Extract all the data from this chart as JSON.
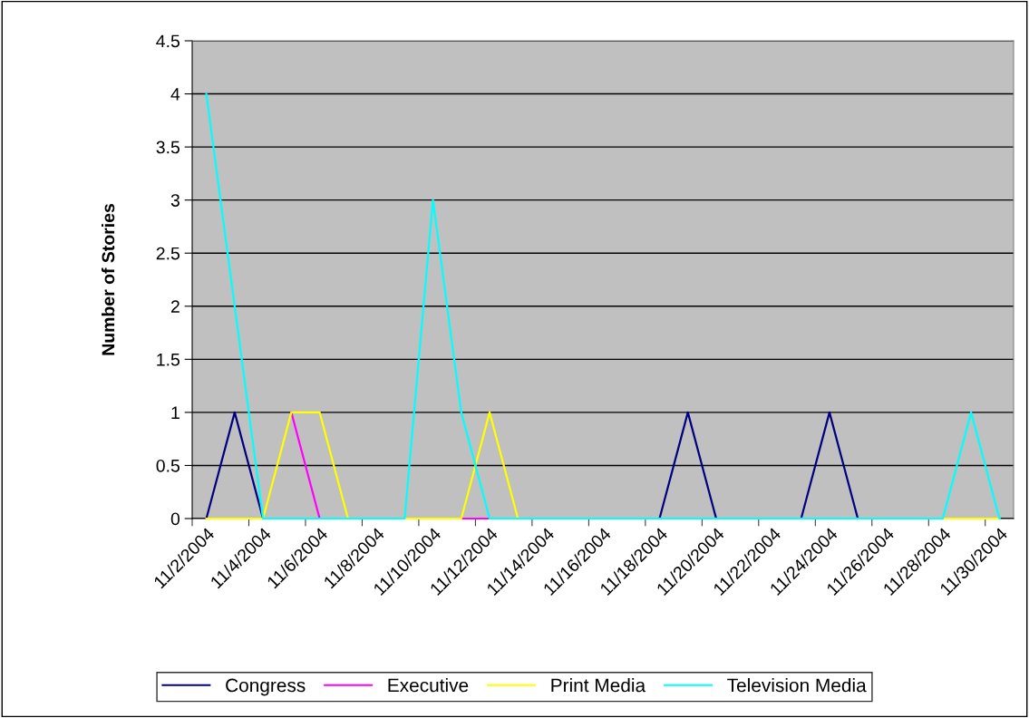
{
  "chart_data": {
    "type": "line",
    "ylabel": "Number of Stories",
    "categories": [
      "11/2/2004",
      null,
      "11/4/2004",
      null,
      "11/6/2004",
      null,
      "11/8/2004",
      null,
      "11/10/2004",
      null,
      "11/12/2004",
      null,
      "11/14/2004",
      null,
      "11/16/2004",
      null,
      "11/18/2004",
      null,
      "11/20/2004",
      null,
      "11/22/2004",
      null,
      "11/24/2004",
      null,
      "11/26/2004",
      null,
      "11/28/2004",
      null,
      "11/30/2004"
    ],
    "series": [
      {
        "name": "Congress",
        "color": "#000080",
        "values": [
          0,
          1,
          0,
          null,
          null,
          null,
          null,
          null,
          null,
          null,
          null,
          null,
          null,
          null,
          null,
          null,
          0,
          1,
          0,
          null,
          null,
          0,
          1,
          0,
          null,
          null,
          null,
          null,
          null
        ]
      },
      {
        "name": "Executive",
        "color": "#ff00ff",
        "values": [
          null,
          null,
          null,
          1,
          0,
          null,
          null,
          null,
          null,
          0,
          0,
          null,
          null,
          null,
          null,
          null,
          null,
          null,
          null,
          null,
          null,
          null,
          null,
          null,
          null,
          null,
          null,
          null,
          null
        ]
      },
      {
        "name": "Print Media",
        "color": "#ffff00",
        "values": [
          0,
          0,
          0,
          1,
          1,
          0,
          null,
          0,
          0,
          0,
          1,
          0,
          null,
          null,
          null,
          null,
          null,
          null,
          null,
          null,
          null,
          null,
          null,
          null,
          null,
          null,
          0,
          0,
          0
        ]
      },
      {
        "name": "Television Media",
        "color": "#00ffff",
        "values": [
          4,
          2,
          0,
          0,
          0,
          0,
          0,
          0,
          3,
          1,
          0,
          0,
          0,
          0,
          0,
          0,
          0,
          0,
          0,
          0,
          0,
          0,
          0,
          0,
          0,
          0,
          0,
          1,
          0
        ]
      }
    ],
    "ylim": [
      0,
      4.5
    ],
    "yticks": [
      0,
      0.5,
      1,
      1.5,
      2,
      2.5,
      3,
      3.5,
      4,
      4.5
    ],
    "grid": "y",
    "legend": "bottom",
    "marker": "none",
    "line_style": "solid"
  }
}
